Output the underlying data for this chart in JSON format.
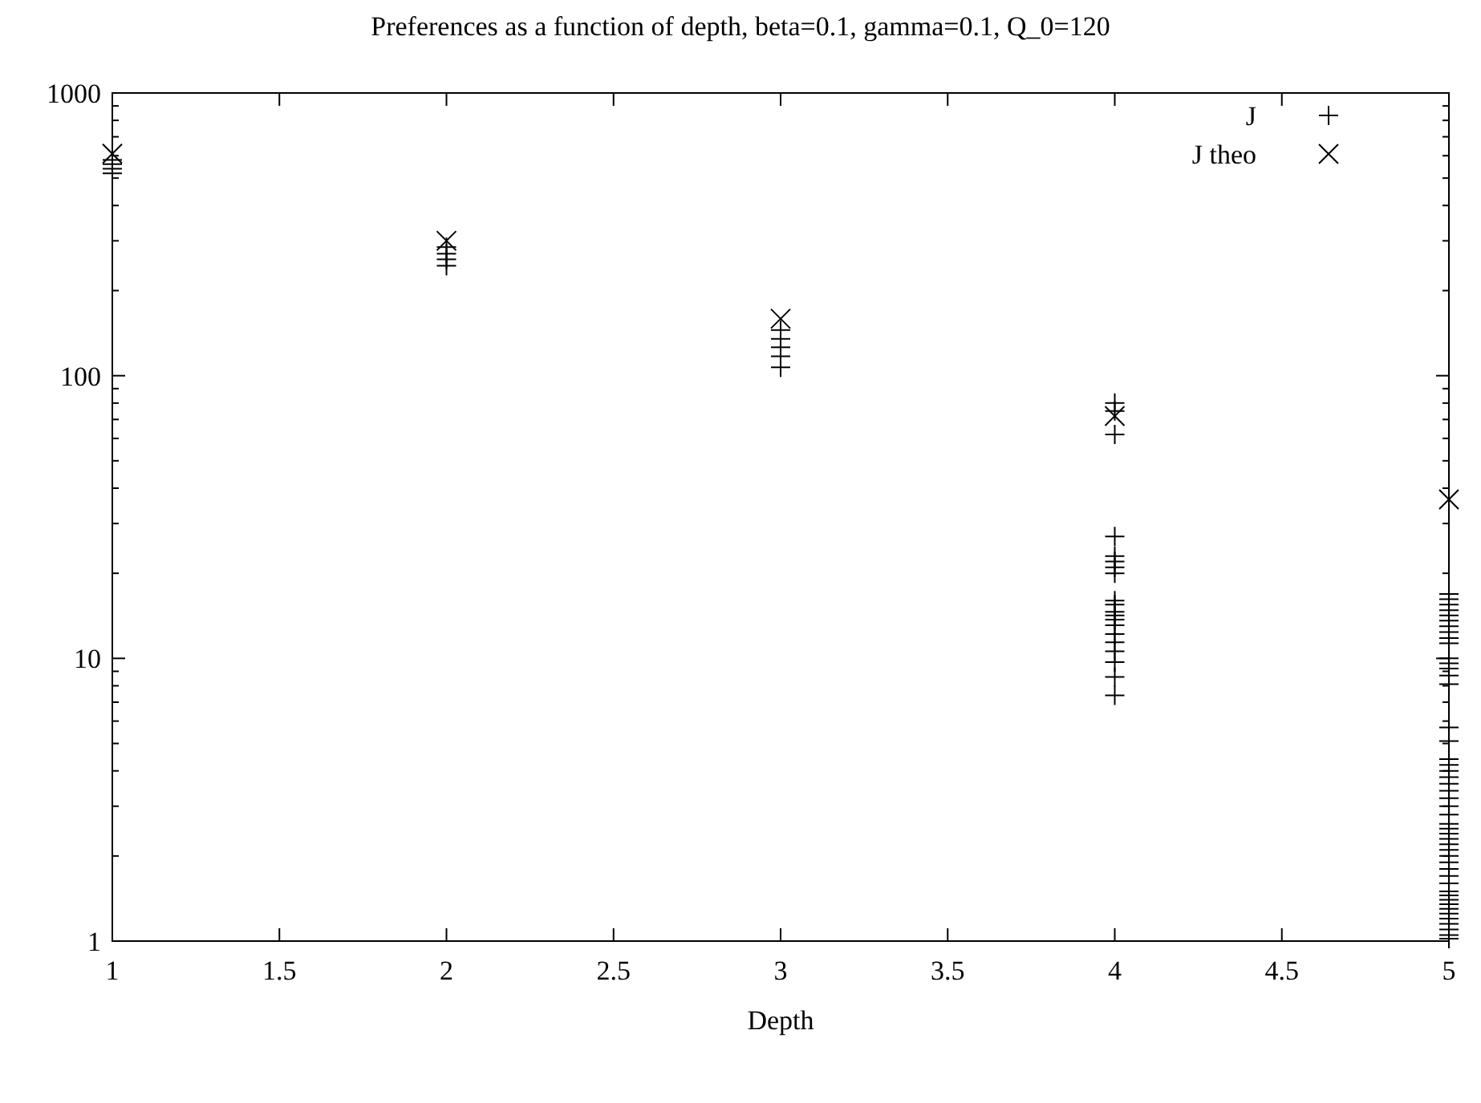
{
  "chart_data": {
    "type": "scatter",
    "title": "Preferences as a function of depth, beta=0.1, gamma=0.1, Q_0=120",
    "xlabel": "Depth",
    "log": "y",
    "grid": false,
    "legend": "top right",
    "xlim": [
      1,
      5
    ],
    "xticks": [
      1,
      1.5,
      2,
      2.5,
      3,
      3.5,
      4,
      4.5,
      5
    ],
    "ylim": [
      1,
      1000
    ],
    "yticks": [
      1,
      {
        "value": 2,
        "label": null
      },
      {
        "value": 3,
        "label": null
      },
      {
        "value": 4,
        "label": null
      },
      {
        "value": 5,
        "label": null
      },
      {
        "value": 6,
        "label": null
      },
      {
        "value": 7,
        "label": null
      },
      {
        "value": 8,
        "label": null
      },
      {
        "value": 9,
        "label": null
      },
      10,
      {
        "value": 20,
        "label": null
      },
      {
        "value": 30,
        "label": null
      },
      {
        "value": 40,
        "label": null
      },
      {
        "value": 50,
        "label": null
      },
      {
        "value": 60,
        "label": null
      },
      {
        "value": 70,
        "label": null
      },
      {
        "value": 80,
        "label": null
      },
      {
        "value": 90,
        "label": null
      },
      100,
      {
        "value": 200,
        "label": null
      },
      {
        "value": 300,
        "label": null
      },
      {
        "value": 400,
        "label": null
      },
      {
        "value": 500,
        "label": null
      },
      {
        "value": 600,
        "label": null
      },
      {
        "value": 700,
        "label": null
      },
      {
        "value": 800,
        "label": null
      },
      {
        "value": 900,
        "label": null
      },
      1000
    ],
    "series": [
      {
        "name": "J",
        "color": "#000000",
        "marker": "plus",
        "x": [
          1,
          1,
          1,
          1,
          2,
          2,
          2,
          2,
          3,
          3,
          3,
          3,
          3,
          4,
          4,
          4,
          4,
          4,
          4,
          4,
          4,
          4,
          4,
          4,
          4,
          4,
          4,
          4,
          4,
          4,
          4,
          4,
          4,
          5,
          5,
          5,
          5,
          5,
          5,
          5,
          5,
          5,
          5,
          5,
          5,
          5,
          5,
          5,
          5,
          5,
          5,
          5,
          5,
          5,
          5,
          5,
          5,
          5,
          5,
          5,
          5,
          5,
          5,
          5,
          5,
          5,
          5,
          5,
          5,
          5,
          5,
          5,
          5,
          5,
          5,
          5,
          5,
          5,
          5,
          5,
          5
        ],
        "values": [
          580,
          560,
          540,
          520,
          285,
          270,
          258,
          245,
          145,
          135,
          126,
          117,
          107,
          80,
          75,
          62,
          27,
          23,
          22,
          21,
          20,
          16,
          15.5,
          14.6,
          14.2,
          13.7,
          13.1,
          12.2,
          11.4,
          10.6,
          9.7,
          8.6,
          7.4,
          16.9,
          16.2,
          15.5,
          14.8,
          14.2,
          13.6,
          13,
          12.4,
          11.8,
          11.3,
          10,
          9.6,
          9.2,
          8.7,
          8.1,
          5.7,
          5.1,
          4.4,
          4.2,
          4,
          3.8,
          3.6,
          3.4,
          3.2,
          3,
          2.8,
          2.6,
          2.5,
          2.4,
          2.3,
          2.2,
          2.1,
          2,
          1.9,
          1.8,
          1.7,
          1.6,
          1.5,
          1.45,
          1.4,
          1.35,
          1.3,
          1.25,
          1.2,
          1.15,
          1.1,
          1.05,
          1.02
        ]
      },
      {
        "name": "J theo",
        "color": "#000000",
        "marker": "cross",
        "x": [
          1,
          2,
          3,
          4,
          5
        ],
        "values": [
          610,
          300,
          159,
          72,
          36.5
        ]
      }
    ]
  }
}
